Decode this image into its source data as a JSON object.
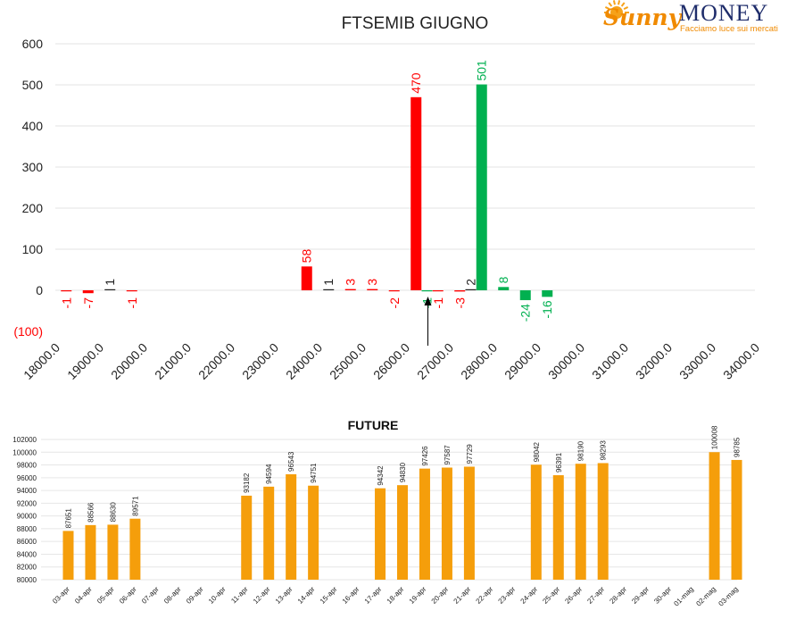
{
  "logo": {
    "brand_script": "Sunny",
    "brand_word": "MONEY",
    "tagline": "Facciamo luce sui mercati",
    "colors": {
      "sun": "#f6a21a",
      "script": "#f08a00",
      "word": "#1f2d6b"
    }
  },
  "chart_data": [
    {
      "type": "bar",
      "title": "FTSEMIB GIUGNO",
      "ylim": [
        -100,
        600
      ],
      "y_ticks": [
        "600",
        "500",
        "400",
        "300",
        "200",
        "100",
        "0",
        "(100)"
      ],
      "y_tick_values": [
        600,
        500,
        400,
        300,
        200,
        100,
        0,
        -100
      ],
      "x_ticks": [
        "18000.0",
        "19000.0",
        "20000.0",
        "21000.0",
        "22000.0",
        "23000.0",
        "24000.0",
        "25000.0",
        "26000.0",
        "27000.0",
        "28000.0",
        "29000.0",
        "30000.0",
        "31000.0",
        "32000.0",
        "33000.0",
        "34000.0"
      ],
      "x_tick_values": [
        18000,
        19000,
        20000,
        21000,
        22000,
        23000,
        24000,
        25000,
        26000,
        27000,
        28000,
        29000,
        30000,
        31000,
        32000,
        33000,
        34000
      ],
      "grid": true,
      "colors": {
        "negative_put": "#ff0000",
        "positive_call": "#00b050",
        "neutral_label": "#222222"
      },
      "bars": [
        {
          "strike": 18250,
          "value": -1,
          "label": "-1",
          "color": "#ff0000"
        },
        {
          "strike": 18750,
          "value": -7,
          "label": "-7",
          "color": "#ff0000"
        },
        {
          "strike": 19250,
          "value": 1,
          "label": "1",
          "color": "#222222"
        },
        {
          "strike": 19750,
          "value": -1,
          "label": "-1",
          "color": "#ff0000"
        },
        {
          "strike": 23750,
          "value": 58,
          "label": "58",
          "color": "#ff0000"
        },
        {
          "strike": 24250,
          "value": 1,
          "label": "1",
          "color": "#222222"
        },
        {
          "strike": 24750,
          "value": 3,
          "label": "3",
          "color": "#ff0000"
        },
        {
          "strike": 25250,
          "value": 3,
          "label": "3",
          "color": "#ff0000"
        },
        {
          "strike": 25750,
          "value": -2,
          "label": "-2",
          "color": "#ff0000"
        },
        {
          "strike": 26250,
          "value": 470,
          "label": "470",
          "color": "#ff0000"
        },
        {
          "strike": 26500,
          "value": -1,
          "label": "-1",
          "color": "#00b050"
        },
        {
          "strike": 26750,
          "value": -1,
          "label": "-1",
          "color": "#ff0000"
        },
        {
          "strike": 27250,
          "value": -3,
          "label": "-3",
          "color": "#ff0000"
        },
        {
          "strike": 27500,
          "value": 2,
          "label": "2",
          "color": "#222222"
        },
        {
          "strike": 27750,
          "value": 501,
          "label": "501",
          "color": "#00b050"
        },
        {
          "strike": 28250,
          "value": 8,
          "label": "8",
          "color": "#00b050"
        },
        {
          "strike": 28750,
          "value": -24,
          "label": "-24",
          "color": "#00b050"
        },
        {
          "strike": 29250,
          "value": -16,
          "label": "-16",
          "color": "#00b050"
        }
      ],
      "annotation": {
        "type": "arrow",
        "strike": 26500
      }
    },
    {
      "type": "bar",
      "title": "FUTURE",
      "ylim": [
        80000,
        102000
      ],
      "y_ticks": [
        "102000",
        "100000",
        "98000",
        "96000",
        "94000",
        "92000",
        "90000",
        "88000",
        "86000",
        "84000",
        "82000",
        "80000"
      ],
      "y_tick_values": [
        102000,
        100000,
        98000,
        96000,
        94000,
        92000,
        90000,
        88000,
        86000,
        84000,
        82000,
        80000
      ],
      "grid": true,
      "color": "#f59e0b",
      "categories": [
        "03-apr",
        "04-apr",
        "05-apr",
        "06-apr",
        "07-apr",
        "08-apr",
        "09-apr",
        "10-apr",
        "11-apr",
        "12-apr",
        "13-apr",
        "14-apr",
        "15-apr",
        "16-apr",
        "17-apr",
        "18-apr",
        "19-apr",
        "20-apr",
        "21-apr",
        "22-apr",
        "23-apr",
        "24-apr",
        "25-apr",
        "26-apr",
        "27-apr",
        "28-apr",
        "29-apr",
        "30-apr",
        "01-mag",
        "02-mag",
        "03-mag"
      ],
      "values": [
        87651,
        88566,
        88630,
        89571,
        null,
        null,
        null,
        null,
        93182,
        94594,
        96543,
        94751,
        null,
        null,
        94342,
        94830,
        97426,
        97587,
        97729,
        null,
        null,
        98042,
        96391,
        98190,
        98293,
        null,
        null,
        null,
        null,
        100008,
        98785
      ],
      "labels": [
        "87651",
        "88566",
        "88630",
        "89571",
        "",
        "",
        "",
        "",
        "93182",
        "94594",
        "96543",
        "94751",
        "",
        "",
        "94342",
        "94830",
        "97426",
        "97587",
        "97729",
        "",
        "",
        "98042",
        "96391",
        "98190",
        "98293",
        "",
        "",
        "",
        "",
        "100008",
        "98785"
      ]
    }
  ]
}
